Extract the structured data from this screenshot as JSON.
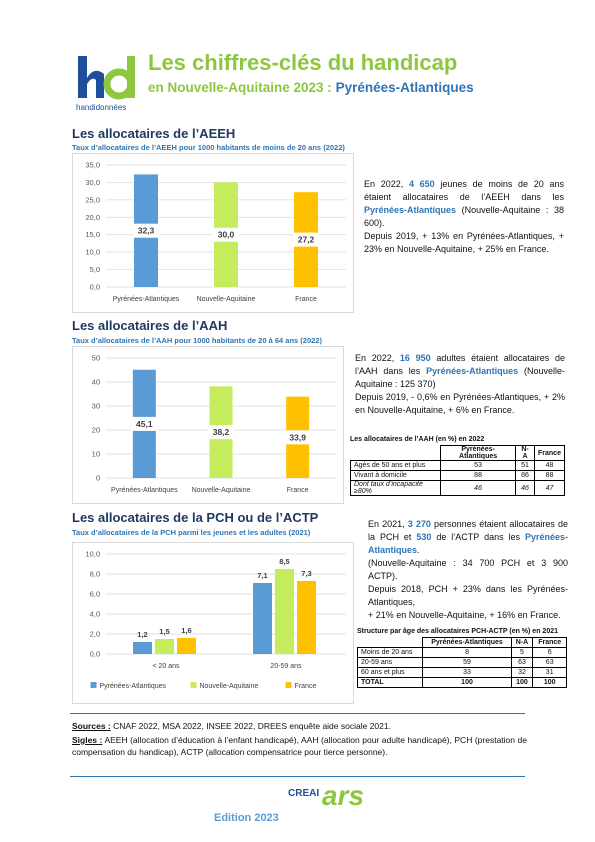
{
  "header": {
    "logo": "handidonnées",
    "title": "Les chiffres-clés du handicap",
    "subtitle": "en Nouvelle-Aquitaine 2023 : ",
    "place": "Pyrénées-Atlantiques"
  },
  "sections": [
    {
      "heading": "Les allocataires de l’AEEH",
      "paragraphs": [
        [
          {
            "text": "En 2022, "
          },
          {
            "text": "4 650",
            "bold": true,
            "color": "#2e75b6"
          },
          {
            "text": " jeunes de moins de 20 ans étaient allocataires de l’AEEH dans les "
          },
          {
            "text": "Pyrénées-Atlantiques",
            "bold": true,
            "color": "#2e75b6"
          },
          {
            "text": " (Nouvelle-Aquitaine : 38 600)."
          }
        ],
        [
          {
            "text": "Depuis 2019, + 13% en Pyrénées-Atlantiques, + 23% en Nouvelle-Aquitaine, + 25% en France."
          }
        ]
      ]
    },
    {
      "heading": "Les allocataires de l’AAH",
      "paragraphs": [
        [
          {
            "text": "En 2022, "
          },
          {
            "text": "16 950",
            "bold": true,
            "color": "#2e75b6"
          },
          {
            "text": " adultes étaient allocataires de l’AAH dans les "
          },
          {
            "text": "Pyrénées-Atlantiques",
            "bold": true,
            "color": "#2e75b6"
          },
          {
            "text": " (Nouvelle-Aquitaine : 125 370)"
          }
        ],
        [
          {
            "text": "Depuis 2019, - 0,6% en Pyrénées-Atlantiques, + 2% en Nouvelle-Aquitaine, + 6% en France."
          }
        ]
      ],
      "table": {
        "title": "Les allocataires de l’AAH (en %) en 2022",
        "columns": [
          "Pyrénées-Atlantiques",
          "N-A",
          "France"
        ],
        "rows": [
          {
            "label": "Agés de 50 ans et plus",
            "values": [
              53,
              51,
              48
            ]
          },
          {
            "label": "Vivant à domicile",
            "values": [
              88,
              86,
              88
            ]
          },
          {
            "label": "Dont taux d’incapacité ≥80%",
            "values": [
              46,
              46,
              47
            ],
            "italic": true
          }
        ]
      }
    },
    {
      "heading": "Les allocataires de la PCH ou de l’ACTP",
      "paragraphs": [
        [
          {
            "text": "En 2021, "
          },
          {
            "text": "3 270",
            "bold": true,
            "color": "#2e75b6"
          },
          {
            "text": " personnes étaient allocataires de la PCH et "
          },
          {
            "text": "530",
            "bold": true,
            "color": "#2e75b6"
          },
          {
            "text": " de l’ACTP dans les "
          },
          {
            "text": "Pyrénées-Atlantiques",
            "bold": true,
            "color": "#2e75b6"
          },
          {
            "text": "."
          }
        ],
        [
          {
            "text": "(Nouvelle-Aquitaine : 34 700 PCH et 3 900 ACTP)."
          }
        ],
        [
          {
            "text": "Depuis 2018, PCH + 23% dans les Pyrénées-Atlantiques,"
          }
        ],
        [
          {
            "text": "+ 21% en Nouvelle-Aquitaine, + 16% en France."
          }
        ]
      ],
      "table": {
        "title": "Structure par âge des allocataires PCH-ACTP (en %) en 2021",
        "columns": [
          "Pyrénées-Atlantiques",
          "N-A",
          "France"
        ],
        "rows": [
          {
            "label": "Moins de 20 ans",
            "values": [
              8,
              5,
              6
            ]
          },
          {
            "label": "20-59 ans",
            "values": [
              59,
              63,
              63
            ]
          },
          {
            "label": "60 ans et plus",
            "values": [
              33,
              32,
              31
            ]
          },
          {
            "label": "TOTAL",
            "values": [
              100,
              100,
              100
            ],
            "bold": true
          }
        ]
      }
    }
  ],
  "chart_data": [
    {
      "type": "bar",
      "title": "Taux d’allocataires de l’AEEH pour 1000 habitants de moins de 20 ans (2022)",
      "categories": [
        "Pyrénées-Atlantiques",
        "Nouvelle-Aquitaine",
        "France"
      ],
      "values": [
        32.3,
        30.0,
        27.2
      ],
      "value_labels": [
        "32,3",
        "30,0",
        "27,2"
      ],
      "colors": [
        "#5b9bd5",
        "#c4ec5c",
        "#ffc000"
      ],
      "ylim": [
        0,
        35
      ],
      "yticks": [
        {
          "value": 0,
          "label": "0,0"
        },
        {
          "value": 5,
          "label": "5,0"
        },
        {
          "value": 10,
          "label": "10,0"
        },
        {
          "value": 15,
          "label": "15,0"
        },
        {
          "value": 20,
          "label": "20,0"
        },
        {
          "value": 25,
          "label": "25,0"
        },
        {
          "value": 30,
          "label": "30,0"
        },
        {
          "value": 35,
          "label": "35,0"
        }
      ],
      "grid": true
    },
    {
      "type": "bar",
      "title": "Taux d’allocataires de l’AAH pour 1000 habitants de 20 à 64 ans (2022)",
      "categories": [
        "Pyrénées-Atlantiques",
        "Nouvelle-Aquitaine",
        "France"
      ],
      "values": [
        45.1,
        38.2,
        33.9
      ],
      "value_labels": [
        "45,1",
        "38,2",
        "33,9"
      ],
      "colors": [
        "#5b9bd5",
        "#c4ec5c",
        "#ffc000"
      ],
      "ylim": [
        0,
        50
      ],
      "yticks": [
        0,
        10,
        20,
        30,
        40,
        50
      ],
      "grid": true
    },
    {
      "type": "grouped_bar",
      "title": "Taux d’allocataires de la PCH parmi les jeunes et les adultes (2021)",
      "categories": [
        "< 20 ans",
        "20-59 ans"
      ],
      "series": [
        {
          "name": "Pyrénées-Atlantiques",
          "color": "#5b9bd5",
          "values": [
            1.2,
            7.1
          ],
          "value_labels": [
            "1,2",
            "7,1"
          ]
        },
        {
          "name": "Nouvelle-Aquitaine",
          "color": "#c4ec5c",
          "values": [
            1.5,
            8.5
          ],
          "value_labels": [
            "1,5",
            "8,5"
          ]
        },
        {
          "name": "France",
          "color": "#ffc000",
          "values": [
            1.6,
            7.3
          ],
          "value_labels": [
            "1,6",
            "7,3"
          ]
        }
      ],
      "ylim": [
        0,
        10
      ],
      "yticks": [
        {
          "value": 0,
          "label": "0,0"
        },
        {
          "value": 2,
          "label": "2,0"
        },
        {
          "value": 4,
          "label": "4,0"
        },
        {
          "value": 6,
          "label": "6,0"
        },
        {
          "value": 8,
          "label": "8,0"
        },
        {
          "value": 10,
          "label": "10,0"
        }
      ],
      "grid": true,
      "legend": "bottom"
    }
  ],
  "footer": {
    "sources_label": "Sources :",
    "sources": "CNAF 2022, MSA 2022, INSEE 2022, DREES enquête aide sociale 2021.",
    "sigles_label": "Sigles :",
    "sigles": "AEEH (allocation d’éducation à l’enfant handicapé), AAH (allocation pour adulte handicapé), PCH (prestation de compensation du handicap), ACTP (allocation compensatrice pour tierce personne).",
    "logos": [
      "CREAI",
      "ars"
    ],
    "edition": "Edition 2023"
  }
}
